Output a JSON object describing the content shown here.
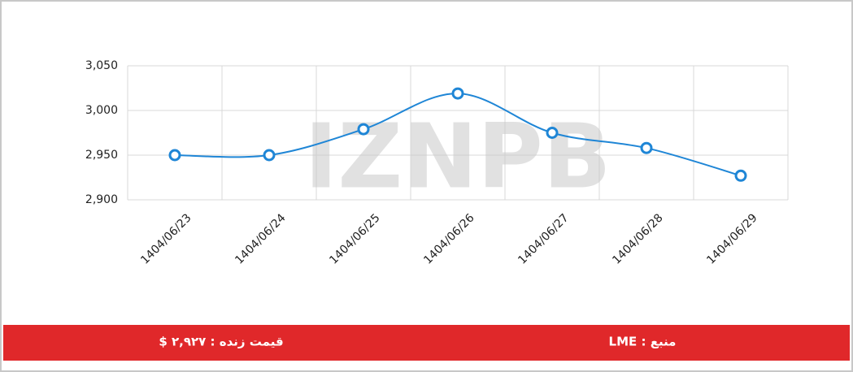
{
  "chart_data": {
    "type": "line",
    "categories": [
      "1404/06/23",
      "1404/06/24",
      "1404/06/25",
      "1404/06/26",
      "1404/06/27",
      "1404/06/28",
      "1404/06/29"
    ],
    "values": [
      2950,
      2950,
      2979,
      3019,
      2975,
      2958,
      2927
    ],
    "color": "#1f86d6",
    "ylim": [
      2900,
      3050
    ],
    "yticks": [
      {
        "value": 2900,
        "label": "2,900"
      },
      {
        "value": 2950,
        "label": "2,950"
      },
      {
        "value": 3000,
        "label": "3,000"
      },
      {
        "value": 3050,
        "label": "3,050"
      }
    ],
    "grid": true
  },
  "watermark": "IZNPB",
  "footer": {
    "source": "منبع : LME",
    "price": "قیمت زنده : ۲,۹۲۷ $"
  }
}
